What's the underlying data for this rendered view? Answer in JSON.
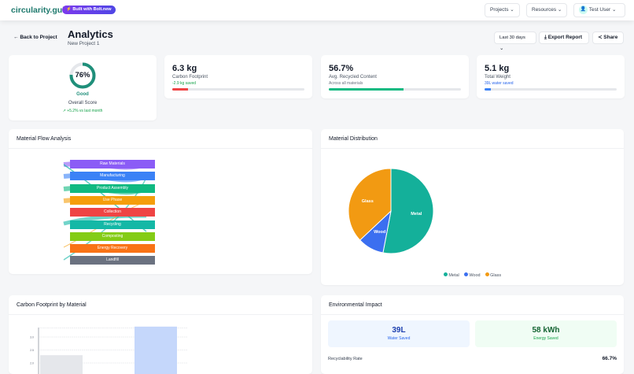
{
  "header": {
    "logo": "circularity.guide",
    "badge": "⚡ Built with Bolt.new",
    "projects": "Projects",
    "resources": "Resources",
    "user": "Test User"
  },
  "page": {
    "back": "Back to Project",
    "title": "Analytics",
    "subtitle": "New Project 1",
    "range": "Last 30 days",
    "export": "Export Report",
    "share": "Share"
  },
  "score": {
    "value": "76%",
    "percent": 76,
    "rating": "Good",
    "label": "Overall Score",
    "trend": "↗ +5.2% vs last month"
  },
  "metrics": [
    {
      "value": "6.3 kg",
      "label": "Carbon Footprint",
      "sub": "-2.9 kg saved",
      "progress": 12,
      "color": "#ef4444",
      "subcolor": "#16a34a"
    },
    {
      "value": "56.7%",
      "label": "Avg. Recycled Content",
      "sub": "Across all materials",
      "progress": 56.7,
      "color": "#10b981",
      "subcolor": "#6b7280"
    },
    {
      "value": "5.1 kg",
      "label": "Total Weight",
      "sub": "39L water saved",
      "progress": 5,
      "color": "#3b82f6",
      "subcolor": "#2563eb"
    }
  ],
  "flow": {
    "title": "Material Flow Analysis",
    "nodes": [
      {
        "label": "Raw Materials",
        "color": "#8b5cf6"
      },
      {
        "label": "Manufacturing",
        "color": "#3b82f6"
      },
      {
        "label": "Product Assembly",
        "color": "#10b981"
      },
      {
        "label": "Use Phase",
        "color": "#f59e0b"
      },
      {
        "label": "Collection",
        "color": "#ef4444"
      },
      {
        "label": "Recycling",
        "color": "#14b8a6"
      },
      {
        "label": "Composting",
        "color": "#84cc16"
      },
      {
        "label": "Energy Recovery",
        "color": "#f97316"
      },
      {
        "label": "Landfill",
        "color": "#6b7280"
      }
    ]
  },
  "distribution": {
    "title": "Material Distribution"
  },
  "chart_data": [
    {
      "type": "pie",
      "labels": [
        "Metal",
        "Wood",
        "Glass"
      ],
      "values": [
        53,
        10,
        37
      ],
      "colors": [
        "#14b09a",
        "#3b6ff0",
        "#f29a12"
      ],
      "legend": "bottom"
    },
    {
      "type": "bar",
      "title": "Carbon Footprint by Material",
      "values": [
        2.3,
        3.4
      ],
      "colors": [
        "#e5e7eb",
        "#c5d7fb"
      ],
      "yticks": [
        "3.0",
        "2.5",
        "2.0"
      ],
      "grid": true
    }
  ],
  "impact": {
    "title": "Environmental Impact",
    "water": "39L",
    "water_label": "Water Saved",
    "energy": "58 kWh",
    "energy_label": "Energy Saved",
    "rate_label": "Recyclability Rate",
    "rate": "66.7%"
  }
}
